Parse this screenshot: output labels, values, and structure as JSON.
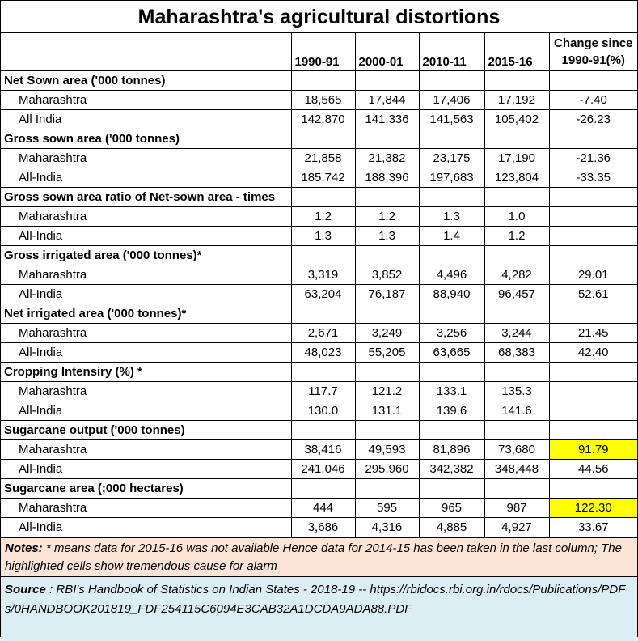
{
  "title": "Maharashtra's agricultural distortions",
  "columns": [
    "1990-91",
    "2000-01",
    "2010-11",
    "2015-16",
    "Change since 1990-91(%)"
  ],
  "sections": [
    {
      "label": "Net Sown area ('000 tonnes)",
      "rows": [
        {
          "name": "Maharashtra",
          "values": [
            "18,565",
            "17,844",
            "17,406",
            "17,192",
            "-7.40"
          ],
          "highlight": false
        },
        {
          "name": "All India",
          "values": [
            "142,870",
            "141,336",
            "141,563",
            "105,402",
            "-26.23"
          ],
          "highlight": false
        }
      ]
    },
    {
      "label": "Gross sown area ('000 tonnes)",
      "rows": [
        {
          "name": "Maharashtra",
          "values": [
            "21,858",
            "21,382",
            "23,175",
            "17,190",
            "-21.36"
          ],
          "highlight": false
        },
        {
          "name": "All-India",
          "values": [
            "185,742",
            "188,396",
            "197,683",
            "123,804",
            "-33.35"
          ],
          "highlight": false
        }
      ]
    },
    {
      "label": "Gross sown area ratio of Net-sown area - times",
      "rows": [
        {
          "name": "Maharashtra",
          "values": [
            "1.2",
            "1.2",
            "1.3",
            "1.0",
            ""
          ],
          "highlight": false
        },
        {
          "name": "All-India",
          "values": [
            "1.3",
            "1.3",
            "1.4",
            "1.2",
            ""
          ],
          "highlight": false
        }
      ]
    },
    {
      "label": "Gross irrigated area ('000 tonnes)*",
      "rows": [
        {
          "name": "Maharashtra",
          "values": [
            "3,319",
            "3,852",
            "4,496",
            "4,282",
            "29.01"
          ],
          "highlight": false
        },
        {
          "name": "All-India",
          "values": [
            "63,204",
            "76,187",
            "88,940",
            "96,457",
            "52.61"
          ],
          "highlight": false
        }
      ]
    },
    {
      "label": "Net irrigated area ('000 tonnes)*",
      "rows": [
        {
          "name": "Maharashtra",
          "values": [
            "2,671",
            "3,249",
            "3,256",
            "3,244",
            "21.45"
          ],
          "highlight": false
        },
        {
          "name": "All-India",
          "values": [
            "48,023",
            "55,205",
            "63,665",
            "68,383",
            "42.40"
          ],
          "highlight": false
        }
      ]
    },
    {
      "label": "Cropping Intensiry (%) *",
      "rows": [
        {
          "name": "Maharashtra",
          "values": [
            "117.7",
            "121.2",
            "133.1",
            "135.3",
            ""
          ],
          "highlight": false
        },
        {
          "name": "All-India",
          "values": [
            "130.0",
            "131.1",
            "139.6",
            "141.6",
            ""
          ],
          "highlight": false
        }
      ]
    },
    {
      "label": "Sugarcane output ('000 tonnes)",
      "rows": [
        {
          "name": "Maharashtra",
          "values": [
            "38,416",
            "49,593",
            "81,896",
            "73,680",
            "91.79"
          ],
          "highlight": true
        },
        {
          "name": "All-India",
          "values": [
            "241,046",
            "295,960",
            "342,382",
            "348,448",
            "44.56"
          ],
          "highlight": false
        }
      ]
    },
    {
      "label": "Sugarcane area (;000 hectares)",
      "rows": [
        {
          "name": "Maharashtra",
          "values": [
            "444",
            "595",
            "965",
            "987",
            "122.30"
          ],
          "highlight": true
        },
        {
          "name": "All-India",
          "values": [
            "3,686",
            "4,316",
            "4,885",
            "4,927",
            "33.67"
          ],
          "highlight": false
        }
      ]
    }
  ],
  "notes": {
    "label": "Notes:",
    "text": " * means data for 2015-16 was not available  Hence data for 2014-15 has been taken in the last column; The highlighted cells show tremendous cause for alarm"
  },
  "source": {
    "label": "Source",
    "text": " : RBI's Handbook of Statistics on Indian States - 2018-19 -- https://rbidocs.rbi.org.in/rdocs/Publications/PDFs/0HANDBOOK201819_FDF254115C6094E3CAB32A1DCDA9ADA88.PDF"
  },
  "colors": {
    "highlight": "#ffff00",
    "notes_bg": "#fce4d6",
    "source_bg": "#dbeef4"
  }
}
